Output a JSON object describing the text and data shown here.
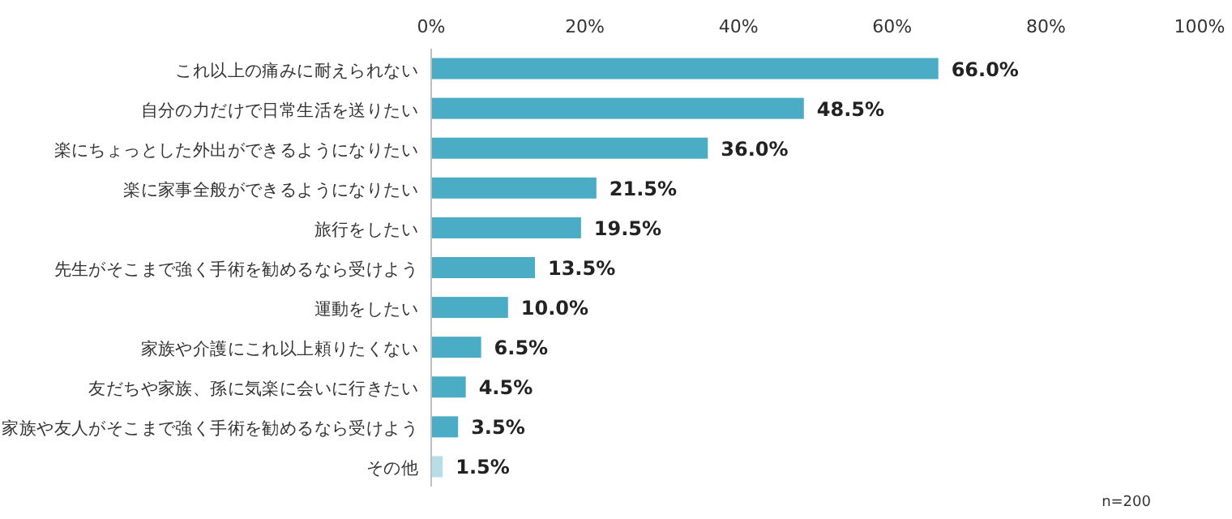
{
  "chart_data": {
    "type": "bar",
    "orientation": "horizontal",
    "categories": [
      "これ以上の痛みに耐えられない",
      "自分の力だけで日常生活を送りたい",
      "楽にちょっとした外出ができるようになりたい",
      "楽に家事全般ができるようになりたい",
      "旅行をしたい",
      "先生がそこまで強く手術を勧めるなら受けよう",
      "運動をしたい",
      "家族や介護にこれ以上頼りたくない",
      "友だちや家族、孫に気楽に会いに行きたい",
      "家族や友人がそこまで強く手術を勧めるなら受けよう",
      "その他"
    ],
    "values": [
      66.0,
      48.5,
      36.0,
      21.5,
      19.5,
      13.5,
      10.0,
      6.5,
      4.5,
      3.5,
      1.5
    ],
    "value_labels": [
      "66.0%",
      "48.5%",
      "36.0%",
      "21.5%",
      "19.5%",
      "13.5%",
      "10.0%",
      "6.5%",
      "4.5%",
      "3.5%",
      "1.5%"
    ],
    "colors": [
      "#4bacc6",
      "#4bacc6",
      "#4bacc6",
      "#4bacc6",
      "#4bacc6",
      "#4bacc6",
      "#4bacc6",
      "#4bacc6",
      "#4bacc6",
      "#4bacc6",
      "#b7dde8"
    ],
    "xlim": [
      0,
      100
    ],
    "xticks": [
      {
        "value": 0,
        "label": "0%"
      },
      {
        "value": 20,
        "label": "20%"
      },
      {
        "value": 40,
        "label": "40%"
      },
      {
        "value": 60,
        "label": "60%"
      },
      {
        "value": 80,
        "label": "80%"
      },
      {
        "value": 100,
        "label": "100%"
      }
    ],
    "grid": false,
    "annotations": [
      "n=200"
    ]
  }
}
